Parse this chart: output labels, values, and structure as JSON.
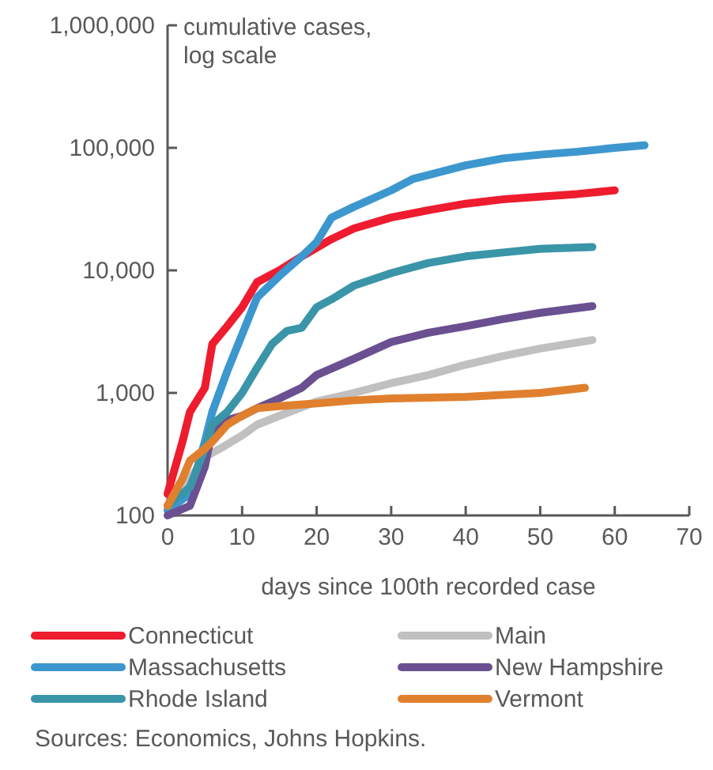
{
  "chart_data": {
    "type": "line",
    "ylabel": "cumulative cases, log scale",
    "xlabel": "days since 100th recorded case",
    "log": "y",
    "xlim": [
      0,
      70
    ],
    "xticks": [
      0,
      10,
      20,
      30,
      40,
      50,
      60,
      70
    ],
    "ylim": [
      100,
      1000000
    ],
    "yticks": [
      100,
      {
        "value": 1000,
        "label": "1,000"
      },
      {
        "value": 10000,
        "label": "10,000"
      },
      {
        "value": 100000,
        "label": "100,000"
      },
      {
        "value": 1000000,
        "label": "1,000,000"
      }
    ],
    "grid": false,
    "legend": "bottom",
    "marker": "none",
    "line_style": "solid",
    "series": [
      {
        "name": "Connecticut",
        "color": "#ee1c2e",
        "x": [
          0,
          2,
          3,
          5,
          6,
          8,
          10,
          12,
          15,
          18,
          22,
          25,
          30,
          35,
          40,
          45,
          50,
          55,
          60
        ],
        "values": [
          150,
          400,
          700,
          1100,
          2500,
          3500,
          5000,
          8000,
          10000,
          13000,
          18000,
          22000,
          27000,
          31000,
          35000,
          38000,
          40000,
          42000,
          45000
        ]
      },
      {
        "name": "Main",
        "color": "#c0c0c0",
        "x": [
          0,
          3,
          5,
          7,
          10,
          12,
          15,
          20,
          25,
          30,
          35,
          40,
          45,
          50,
          57
        ],
        "values": [
          110,
          200,
          300,
          350,
          450,
          550,
          650,
          850,
          1000,
          1200,
          1400,
          1700,
          2000,
          2300,
          2700
        ]
      },
      {
        "name": "Massachusetts",
        "color": "#3d97cf",
        "x": [
          0,
          3,
          5,
          6,
          8,
          10,
          12,
          15,
          18,
          20,
          22,
          25,
          30,
          33,
          35,
          40,
          45,
          50,
          55,
          60,
          64
        ],
        "values": [
          110,
          150,
          400,
          700,
          1500,
          3000,
          6000,
          9000,
          13000,
          17000,
          27000,
          33000,
          45000,
          56000,
          60000,
          72000,
          82000,
          88000,
          93000,
          100000,
          105000
        ]
      },
      {
        "name": "New Hampshire",
        "color": "#6a5090",
        "x": [
          0,
          3,
          5,
          6,
          8,
          10,
          12,
          15,
          18,
          20,
          25,
          30,
          35,
          40,
          45,
          50,
          57
        ],
        "values": [
          100,
          120,
          250,
          500,
          600,
          650,
          750,
          900,
          1100,
          1400,
          1900,
          2600,
          3100,
          3500,
          4000,
          4500,
          5100
        ]
      },
      {
        "name": "Rhode Island",
        "color": "#3a95a8",
        "x": [
          0,
          3,
          5,
          6,
          8,
          10,
          12,
          14,
          16,
          18,
          20,
          22,
          25,
          30,
          35,
          40,
          45,
          50,
          57
        ],
        "values": [
          120,
          170,
          350,
          550,
          700,
          1000,
          1600,
          2500,
          3200,
          3400,
          5000,
          5800,
          7500,
          9500,
          11500,
          13000,
          14000,
          15000,
          15500
        ]
      },
      {
        "name": "Vermont",
        "color": "#e0802e",
        "x": [
          0,
          2,
          3,
          5,
          6,
          8,
          10,
          12,
          15,
          20,
          25,
          30,
          40,
          50,
          56
        ],
        "values": [
          120,
          200,
          280,
          350,
          400,
          550,
          650,
          750,
          780,
          820,
          870,
          900,
          930,
          1000,
          1100
        ]
      }
    ],
    "annotations": [
      "Sources: Economics, Johns Hopkins."
    ]
  }
}
